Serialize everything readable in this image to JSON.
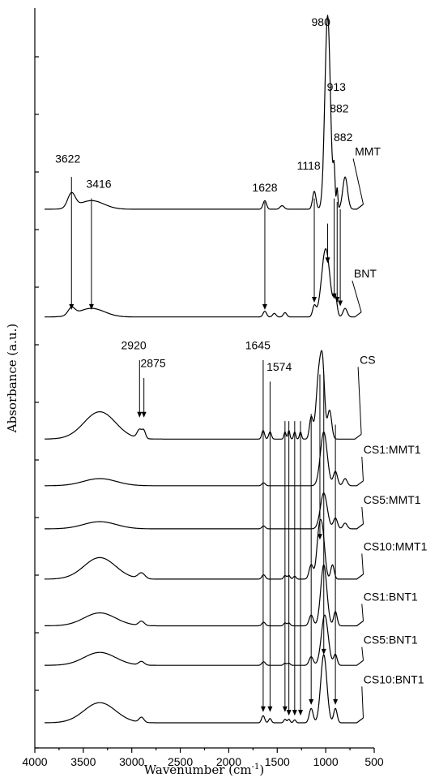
{
  "chart_data": {
    "type": "line",
    "xlabel_main": "Wavenumber (cm",
    "xlabel_sup": "-1",
    "xlabel_close": ")",
    "ylabel": "Absorbance (a.u.)",
    "xlim": [
      4000,
      500
    ],
    "x_ticks": [
      4000,
      3500,
      3000,
      2500,
      2000,
      1500,
      1000,
      500
    ],
    "x_tick_labels": [
      "4000",
      "3500",
      "3000",
      "2500",
      "2000",
      "1500",
      "1000",
      "500"
    ],
    "y_tick_labels": [],
    "series": [
      {
        "name": "MMT",
        "label_x": 770,
        "label_y": 7.55,
        "label_wn": 750,
        "baseline": 6.8,
        "peaks": [
          [
            3622,
            0.2,
            55
          ],
          [
            3416,
            0.12,
            180
          ],
          [
            1628,
            0.12,
            25
          ],
          [
            1450,
            0.05,
            30
          ],
          [
            1118,
            0.25,
            25
          ],
          [
            980,
            2.7,
            40
          ],
          [
            913,
            0.5,
            14
          ],
          [
            882,
            0.3,
            10
          ],
          [
            800,
            0.45,
            35
          ]
        ],
        "end_wn": 680
      },
      {
        "name": "BNT",
        "label_x": 780,
        "label_y": 5.85,
        "label_wn": 760,
        "baseline": 5.3,
        "peaks": [
          [
            3622,
            0.1,
            50
          ],
          [
            3416,
            0.12,
            190
          ],
          [
            1628,
            0.08,
            25
          ],
          [
            1530,
            0.05,
            25
          ],
          [
            1420,
            0.06,
            25
          ],
          [
            1118,
            0.15,
            25
          ],
          [
            1000,
            0.95,
            60
          ],
          [
            900,
            0.25,
            25
          ],
          [
            800,
            0.12,
            30
          ]
        ],
        "end_wn": 700
      },
      {
        "name": "CS",
        "label_x": 680,
        "label_y": 4.65,
        "label_wn": 700,
        "baseline": 3.6,
        "peaks": [
          [
            3330,
            0.38,
            230
          ],
          [
            2920,
            0.12,
            35
          ],
          [
            2875,
            0.1,
            25
          ],
          [
            1645,
            0.12,
            20
          ],
          [
            1574,
            0.1,
            20
          ],
          [
            1420,
            0.1,
            15
          ],
          [
            1380,
            0.12,
            15
          ],
          [
            1320,
            0.1,
            15
          ],
          [
            1260,
            0.1,
            15
          ],
          [
            1150,
            0.3,
            25
          ],
          [
            1070,
            0.9,
            40
          ],
          [
            1030,
            0.8,
            30
          ],
          [
            960,
            0.4,
            30
          ]
        ],
        "end_wn": 700
      },
      {
        "name": "CS1:MMT1",
        "label_x": 640,
        "label_y": 3.4,
        "label_wn": 660,
        "baseline": 2.95,
        "peaks": [
          [
            3330,
            0.1,
            240
          ],
          [
            1640,
            0.04,
            25
          ],
          [
            1020,
            0.75,
            50
          ],
          [
            900,
            0.2,
            30
          ],
          [
            800,
            0.1,
            30
          ]
        ],
        "end_wn": 680
      },
      {
        "name": "CS5:MMT1",
        "label_x": 640,
        "label_y": 2.7,
        "label_wn": 660,
        "baseline": 2.35,
        "peaks": [
          [
            3330,
            0.1,
            240
          ],
          [
            1640,
            0.04,
            25
          ],
          [
            1020,
            0.5,
            50
          ],
          [
            900,
            0.15,
            30
          ],
          [
            800,
            0.08,
            30
          ]
        ],
        "end_wn": 680
      },
      {
        "name": "CS10:MMT1",
        "label_x": 640,
        "label_y": 2.05,
        "label_wn": 660,
        "baseline": 1.65,
        "peaks": [
          [
            3330,
            0.3,
            230
          ],
          [
            2900,
            0.08,
            50
          ],
          [
            1640,
            0.06,
            25
          ],
          [
            1420,
            0.05,
            20
          ],
          [
            1380,
            0.05,
            20
          ],
          [
            1320,
            0.04,
            20
          ],
          [
            1150,
            0.2,
            30
          ],
          [
            1070,
            0.6,
            35
          ],
          [
            1030,
            0.55,
            35
          ],
          [
            930,
            0.2,
            25
          ]
        ],
        "end_wn": 680
      },
      {
        "name": "CS1:BNT1",
        "label_x": 640,
        "label_y": 1.35,
        "label_wn": 660,
        "baseline": 1.0,
        "peaks": [
          [
            3330,
            0.18,
            230
          ],
          [
            2900,
            0.06,
            40
          ],
          [
            1640,
            0.05,
            25
          ],
          [
            1420,
            0.04,
            20
          ],
          [
            1380,
            0.04,
            20
          ],
          [
            1150,
            0.15,
            30
          ],
          [
            1020,
            0.85,
            45
          ],
          [
            900,
            0.2,
            25
          ]
        ],
        "end_wn": 680
      },
      {
        "name": "CS5:BNT1",
        "label_x": 640,
        "label_y": 0.75,
        "label_wn": 660,
        "baseline": 0.45,
        "peaks": [
          [
            3330,
            0.18,
            230
          ],
          [
            2900,
            0.05,
            40
          ],
          [
            1640,
            0.05,
            25
          ],
          [
            1420,
            0.03,
            20
          ],
          [
            1380,
            0.03,
            20
          ],
          [
            1150,
            0.12,
            30
          ],
          [
            1010,
            0.7,
            50
          ],
          [
            900,
            0.15,
            25
          ]
        ],
        "end_wn": 680
      },
      {
        "name": "CS10:BNT1",
        "label_x": 640,
        "label_y": 0.2,
        "label_wn": 660,
        "baseline": -0.35,
        "peaks": [
          [
            3330,
            0.28,
            230
          ],
          [
            2900,
            0.07,
            35
          ],
          [
            1645,
            0.1,
            22
          ],
          [
            1574,
            0.06,
            20
          ],
          [
            1420,
            0.05,
            18
          ],
          [
            1380,
            0.05,
            18
          ],
          [
            1320,
            0.04,
            18
          ],
          [
            1150,
            0.2,
            28
          ],
          [
            1020,
            0.95,
            45
          ],
          [
            900,
            0.2,
            25
          ]
        ],
        "end_wn": 680
      }
    ],
    "annotations": [
      {
        "text": "980",
        "wn": 980,
        "y_text": 9.35,
        "x_text": 1050
      },
      {
        "text": "913",
        "wn": 913,
        "y_text": 8.45,
        "x_text": 890
      },
      {
        "text": "882",
        "wn": 882,
        "y_text": 8.15,
        "x_text": 860
      },
      {
        "text": "882",
        "wn": 882,
        "y_text": 7.75,
        "x_text": 820
      },
      {
        "text": "3622",
        "wn": 3622,
        "y_text": 7.45,
        "x_text": 3660
      },
      {
        "text": "3416",
        "wn": 3416,
        "y_text": 7.1,
        "x_text": 3340
      },
      {
        "text": "1118",
        "wn": 1118,
        "y_text": 7.35,
        "x_text": 1175
      },
      {
        "text": "1628",
        "wn": 1628,
        "y_text": 7.05,
        "x_text": 1628
      },
      {
        "text": "2920",
        "wn": 2920,
        "y_text": 4.85,
        "x_text": 2980
      },
      {
        "text": "2875",
        "wn": 2875,
        "y_text": 4.6,
        "x_text": 2780
      },
      {
        "text": "1645",
        "wn": 1645,
        "y_text": 4.85,
        "x_text": 1700
      },
      {
        "text": "1574",
        "wn": 1574,
        "y_text": 4.55,
        "x_text": 1480
      }
    ],
    "long_arrows": [
      {
        "wn": 3622,
        "from_y": 7.25,
        "to_y": 5.4
      },
      {
        "wn": 3416,
        "from_y": 6.95,
        "to_y": 5.4
      },
      {
        "wn": 1628,
        "from_y": 6.9,
        "to_y": 5.4
      },
      {
        "wn": 1118,
        "from_y": 6.95,
        "to_y": 5.5
      },
      {
        "wn": 980,
        "from_y": 6.6,
        "to_y": 6.05
      },
      {
        "wn": 913,
        "from_y": 6.95,
        "to_y": 5.55
      },
      {
        "wn": 882,
        "from_y": 6.9,
        "to_y": 5.5
      },
      {
        "wn": 850,
        "from_y": 6.8,
        "to_y": 5.45
      },
      {
        "wn": 2920,
        "from_y": 4.7,
        "to_y": 3.9
      },
      {
        "wn": 2875,
        "from_y": 4.45,
        "to_y": 3.9
      },
      {
        "wn": 1645,
        "from_y": 4.7,
        "to_y": -0.2
      },
      {
        "wn": 1574,
        "from_y": 4.4,
        "to_y": -0.2
      },
      {
        "wn": 1420,
        "from_y": 3.85,
        "to_y": -0.2
      },
      {
        "wn": 1380,
        "from_y": 3.85,
        "to_y": -0.25
      },
      {
        "wn": 1320,
        "from_y": 3.85,
        "to_y": -0.25
      },
      {
        "wn": 1260,
        "from_y": 3.85,
        "to_y": -0.25
      },
      {
        "wn": 1150,
        "from_y": 3.95,
        "to_y": -0.1
      },
      {
        "wn": 1060,
        "from_y": 4.5,
        "to_y": 2.2
      },
      {
        "wn": 1020,
        "from_y": 4.5,
        "to_y": 0.6
      },
      {
        "wn": 900,
        "from_y": 3.8,
        "to_y": -0.1
      }
    ]
  }
}
